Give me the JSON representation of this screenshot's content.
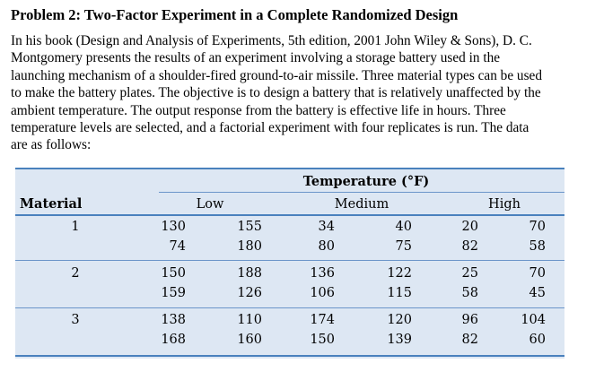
{
  "problem": {
    "title": "Problem 2: Two-Factor Experiment in a Complete Randomized Design",
    "paragraph_lines": [
      "In his book (Design and Analysis of Experiments, 5th edition, 2001 John Wiley & Sons), D. C.",
      "Montgomery presents the results of an experiment involving a storage battery used in the",
      "launching mechanism of a shoulder-fired ground-to-air missile. Three material types can be used",
      "to make the battery plates. The objective is to design a battery that is relatively unaffected by the",
      "ambient temperature. The output response from the battery is effective life in hours. Three",
      "temperature levels are selected, and a factorial experiment with four replicates is run. The data",
      "are as follows:"
    ]
  },
  "table": {
    "super_header": "Temperature (°F)",
    "row_header": "Material",
    "column_groups": [
      "Low",
      "Medium",
      "High"
    ],
    "rows": [
      {
        "material": "1",
        "data": [
          [
            "130",
            "155",
            "34",
            "40",
            "20",
            "70"
          ],
          [
            "74",
            "180",
            "80",
            "75",
            "82",
            "58"
          ]
        ]
      },
      {
        "material": "2",
        "data": [
          [
            "150",
            "188",
            "136",
            "122",
            "25",
            "70"
          ],
          [
            "159",
            "126",
            "106",
            "115",
            "58",
            "45"
          ]
        ]
      },
      {
        "material": "3",
        "data": [
          [
            "138",
            "110",
            "174",
            "120",
            "96",
            "104"
          ],
          [
            "168",
            "160",
            "150",
            "139",
            "82",
            "60"
          ]
        ]
      }
    ],
    "colors": {
      "background": "#dde7f3",
      "rule": "#4a81bd"
    }
  }
}
